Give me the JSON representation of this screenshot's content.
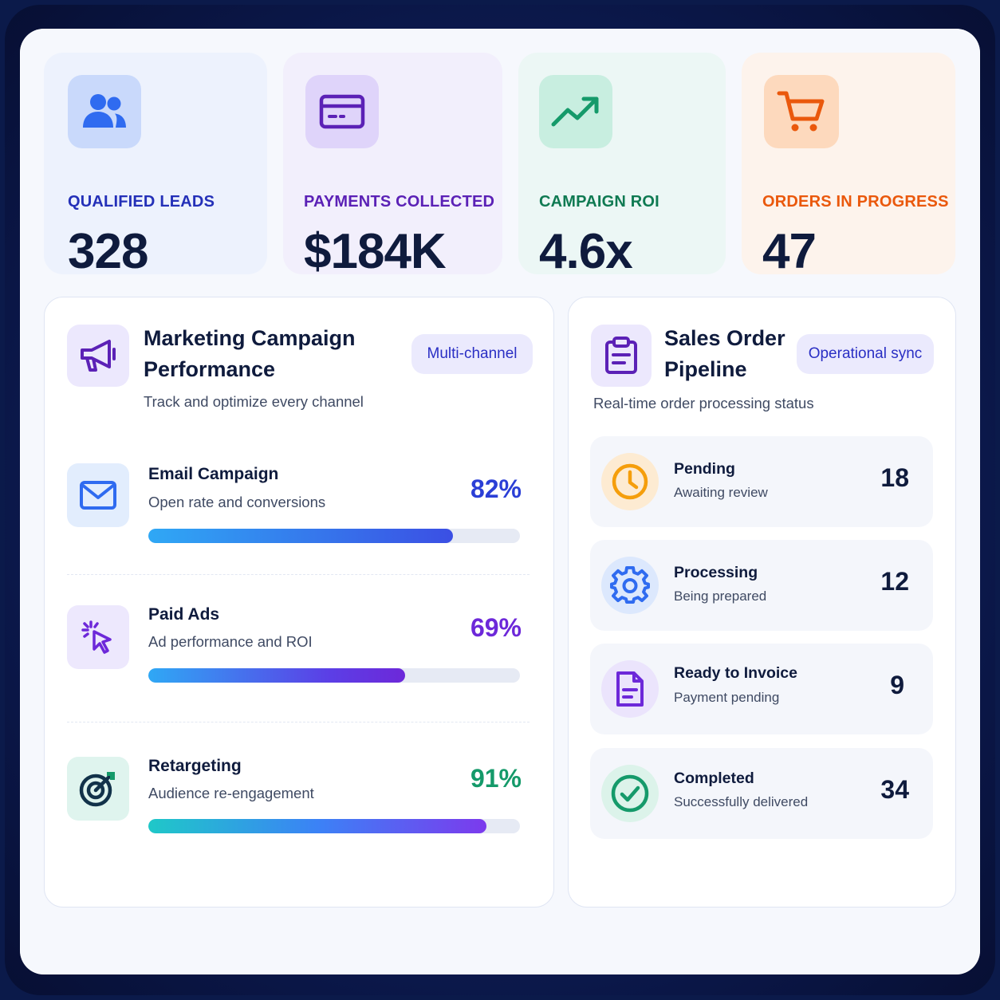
{
  "kpis": [
    {
      "label": "QUALIFIED LEADS",
      "value": "328",
      "icon": "users-icon",
      "accent": "#2430b8"
    },
    {
      "label": "PAYMENTS COLLECTED",
      "value": "$184K",
      "icon": "credit-card-icon",
      "accent": "#5b21b6"
    },
    {
      "label": "CAMPAIGN ROI",
      "value": "4.6x",
      "icon": "trend-up-icon",
      "accent": "#0f7a52"
    },
    {
      "label": "ORDERS IN PROGRESS",
      "value": "47",
      "icon": "cart-icon",
      "accent": "#ea580c"
    }
  ],
  "marketing": {
    "title_line1": "Marketing Campaign",
    "title_line2": "Performance",
    "subtitle": "Track and optimize every channel",
    "badge": "Multi-channel",
    "icon": "megaphone-icon",
    "rows": [
      {
        "name": "Email Campaign",
        "desc": "Open rate and conversions",
        "pct_label": "82%",
        "value": 82,
        "icon": "mail-icon",
        "accent": "#2b3fd6"
      },
      {
        "name": "Paid Ads",
        "desc": "Ad performance and ROI",
        "pct_label": "69%",
        "value": 69,
        "icon": "cursor-click-icon",
        "accent": "#6d28d9"
      },
      {
        "name": "Retargeting",
        "desc": "Audience re-engagement",
        "pct_label": "91%",
        "value": 91,
        "icon": "target-icon",
        "accent": "#159a6a"
      }
    ]
  },
  "pipeline": {
    "title_line1": "Sales Order",
    "title_line2": "Pipeline",
    "subtitle": "Real-time order processing status",
    "badge": "Operational sync",
    "icon": "clipboard-icon",
    "stages": [
      {
        "name": "Pending",
        "desc": "Awaiting review",
        "count": "18",
        "icon": "clock-icon"
      },
      {
        "name": "Processing",
        "desc": "Being prepared",
        "count": "12",
        "icon": "gear-icon"
      },
      {
        "name": "Ready to Invoice",
        "desc": "Payment pending",
        "count": "9",
        "icon": "document-icon"
      },
      {
        "name": "Completed",
        "desc": "Successfully delivered",
        "count": "34",
        "icon": "check-circle-icon"
      }
    ]
  }
}
